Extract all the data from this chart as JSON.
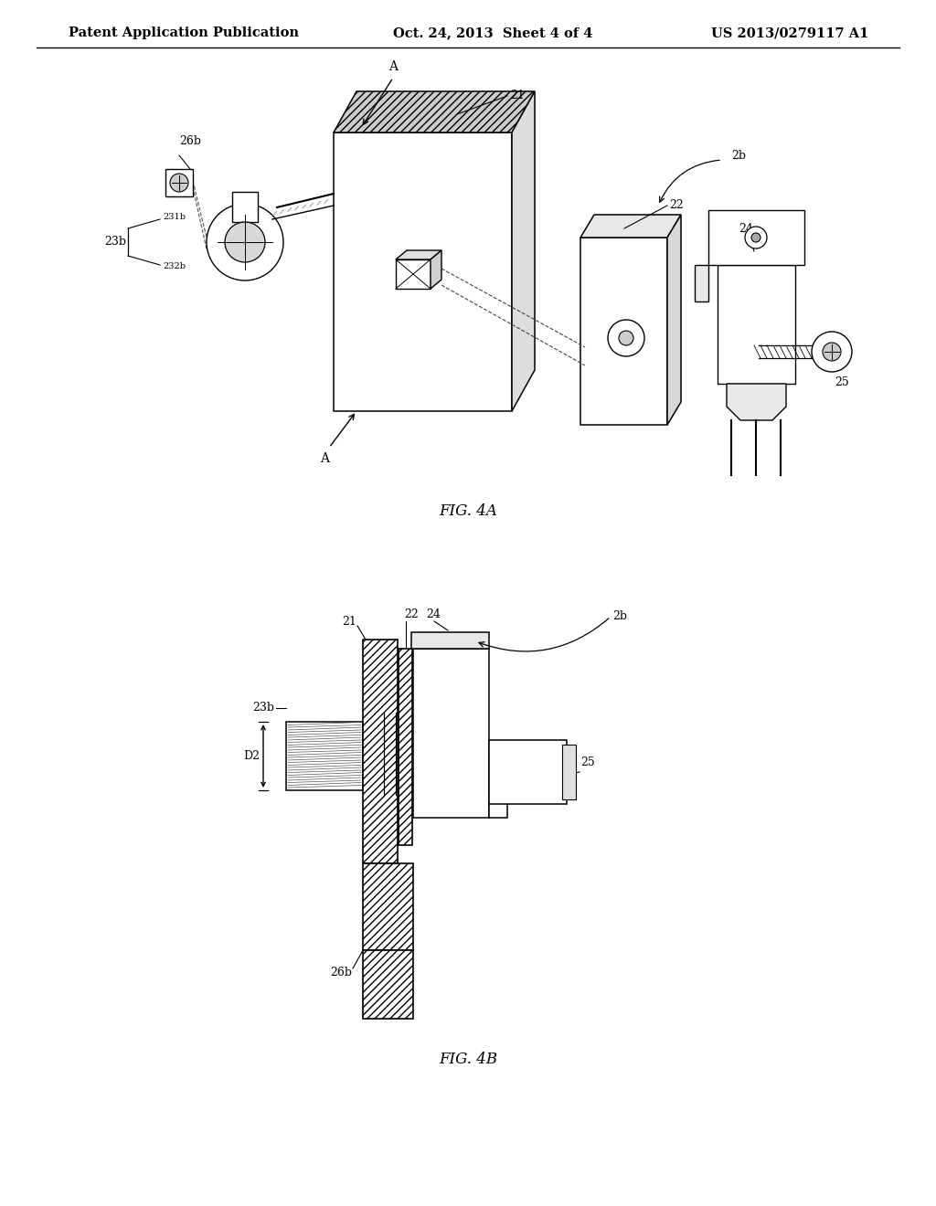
{
  "title_left": "Patent Application Publication",
  "title_center": "Oct. 24, 2013  Sheet 4 of 4",
  "title_right": "US 2013/0279117 A1",
  "fig4a_label": "FIG. 4A",
  "fig4b_label": "FIG. 4B",
  "background_color": "#ffffff",
  "line_color": "#000000",
  "font_size_header": 10.5,
  "font_size_label": 9,
  "font_size_fig": 11
}
